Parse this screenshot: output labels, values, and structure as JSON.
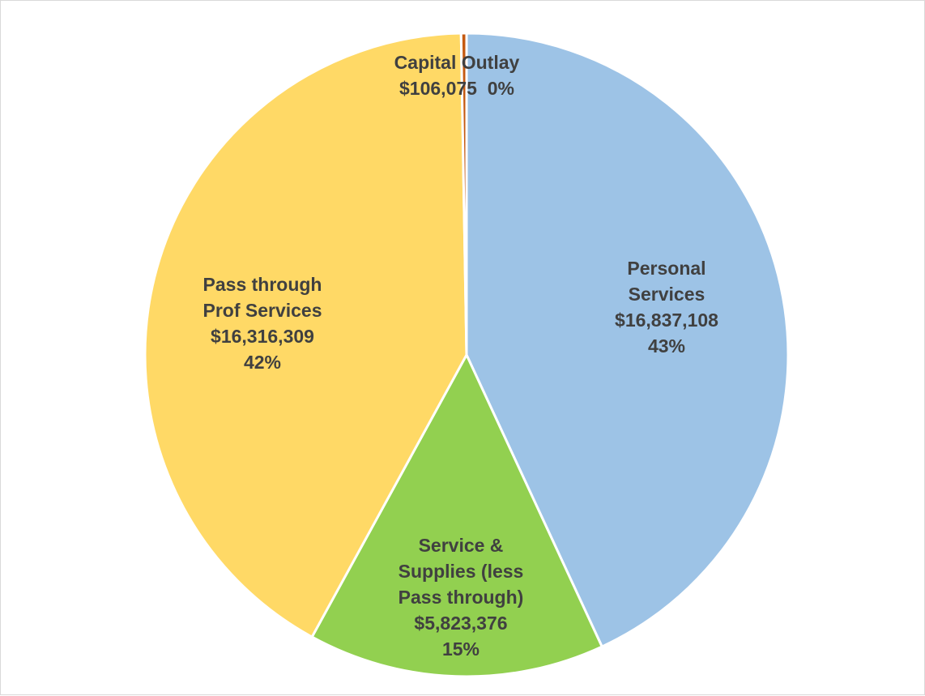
{
  "chart_data": {
    "type": "pie",
    "categories": [
      "Personal\nServices",
      "Service &\nSupplies (less\nPass through)",
      "Pass through\nProf Services",
      "Capital Outlay"
    ],
    "values": [
      16837108,
      5823376,
      16316309,
      106075
    ],
    "value_labels": [
      "$16,837,108",
      "$5,823,376",
      "$16,316,309",
      "$106,075"
    ],
    "percent_labels": [
      "43%",
      "15%",
      "42%",
      "0%"
    ],
    "colors": [
      "#9dc3e6",
      "#92d050",
      "#ffd966",
      "#c55a11"
    ]
  }
}
